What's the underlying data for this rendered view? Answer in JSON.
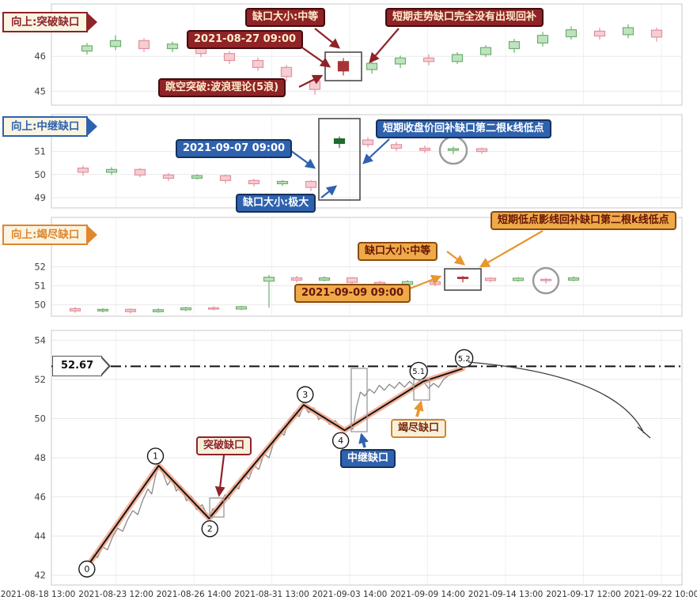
{
  "banners": [
    {
      "label": "向上:突破缺口",
      "color": "#8e2328"
    },
    {
      "label": "向上:中继缺口",
      "color": "#2f62ae"
    },
    {
      "label": "向上:竭尽缺口",
      "color": "#e0862d"
    }
  ],
  "annotations": {
    "breakout": {
      "gap_size": "缺口大小:中等",
      "no_fill": "短期走势缺口完全没有出现回补",
      "time": "2021-08-27 09:00",
      "wave_theory": "跳空突破:波浪理论(5浪)"
    },
    "continuation": {
      "time": "2021-09-07 09:00",
      "fill_rule": "短期收盘价回补缺口第二根k线低点",
      "gap_size": "缺口大小:极大"
    },
    "exhaustion": {
      "fill_rule": "短期低点影线回补缺口第二根k线低点",
      "gap_size": "缺口大小:中等",
      "time": "2021-09-09 09:00"
    },
    "wave": {
      "breakout_label": "突破缺口",
      "continuation_label": "中继缺口",
      "exhaustion_label": "竭尽缺口"
    }
  },
  "colors": {
    "up": "#6fae6f",
    "up_fill": "#bfe3bf",
    "down": "#e2909c",
    "down_fill": "#f6cdd3",
    "gap_up": "#1e6b2e",
    "gap_down": "#a93238",
    "accent_red": "#8e2328",
    "accent_blue": "#2f62ae",
    "accent_orange": "#e8962e",
    "wave_highlight": "#f2a284"
  },
  "chart_data": [
    {
      "id": "breakout-gap-panel",
      "type": "candlestick",
      "title": "向上:突破缺口",
      "ylim": [
        44.6,
        47.5
      ],
      "yticks": [
        45,
        46
      ],
      "gap_index": 9,
      "candles": [
        [
          46.15,
          46.38,
          46.05,
          46.3
        ],
        [
          46.28,
          46.6,
          46.18,
          46.45
        ],
        [
          46.45,
          46.52,
          46.12,
          46.22
        ],
        [
          46.22,
          46.42,
          46.12,
          46.35
        ],
        [
          46.35,
          46.4,
          45.98,
          46.08
        ],
        [
          46.08,
          46.15,
          45.78,
          45.88
        ],
        [
          45.88,
          45.96,
          45.58,
          45.68
        ],
        [
          45.68,
          45.75,
          45.28,
          45.42
        ],
        [
          45.3,
          45.35,
          44.9,
          45.05
        ],
        [
          45.85,
          45.95,
          45.45,
          45.58
        ],
        [
          45.62,
          45.88,
          45.5,
          45.8
        ],
        [
          45.78,
          46.02,
          45.66,
          45.95
        ],
        [
          45.95,
          46.06,
          45.74,
          45.85
        ],
        [
          45.85,
          46.12,
          45.78,
          46.05
        ],
        [
          46.05,
          46.32,
          45.98,
          46.25
        ],
        [
          46.22,
          46.5,
          46.1,
          46.42
        ],
        [
          46.38,
          46.7,
          46.28,
          46.6
        ],
        [
          46.56,
          46.86,
          46.48,
          46.76
        ],
        [
          46.72,
          46.82,
          46.48,
          46.58
        ],
        [
          46.62,
          46.92,
          46.52,
          46.82
        ],
        [
          46.75,
          46.82,
          46.42,
          46.55
        ]
      ]
    },
    {
      "id": "continuation-gap-panel",
      "type": "candlestick",
      "title": "向上:中继缺口",
      "ylim": [
        48.55,
        52.6
      ],
      "yticks": [
        49,
        50,
        51
      ],
      "gap_index": 9,
      "circled_index": 13,
      "candles": [
        [
          50.28,
          50.38,
          49.95,
          50.1
        ],
        [
          50.1,
          50.32,
          49.98,
          50.22
        ],
        [
          50.22,
          50.28,
          49.88,
          49.98
        ],
        [
          49.98,
          50.06,
          49.72,
          49.84
        ],
        [
          49.84,
          50.02,
          49.78,
          49.95
        ],
        [
          49.95,
          50.0,
          49.62,
          49.74
        ],
        [
          49.74,
          49.82,
          49.48,
          49.6
        ],
        [
          49.6,
          49.76,
          49.5,
          49.7
        ],
        [
          49.7,
          49.76,
          49.28,
          49.44
        ],
        [
          51.35,
          51.65,
          51.15,
          51.55
        ],
        [
          51.5,
          51.62,
          51.18,
          51.3
        ],
        [
          51.3,
          51.42,
          51.02,
          51.14
        ],
        [
          51.14,
          51.26,
          50.94,
          51.05
        ],
        [
          51.05,
          51.22,
          50.88,
          51.12
        ],
        [
          51.12,
          51.18,
          50.9,
          51.0
        ]
      ]
    },
    {
      "id": "exhaustion-gap-panel",
      "type": "candlestick",
      "title": "向上:竭尽缺口",
      "ylim": [
        49.4,
        54.6
      ],
      "yticks": [
        50,
        51,
        52
      ],
      "gap_index": 14,
      "circled_index": 17,
      "candles": [
        [
          49.8,
          49.88,
          49.58,
          49.68
        ],
        [
          49.68,
          49.82,
          49.6,
          49.76
        ],
        [
          49.76,
          49.82,
          49.54,
          49.64
        ],
        [
          49.64,
          49.82,
          49.58,
          49.74
        ],
        [
          49.74,
          49.9,
          49.66,
          49.84
        ],
        [
          49.84,
          49.92,
          49.7,
          49.78
        ],
        [
          49.78,
          49.95,
          49.72,
          49.9
        ],
        [
          51.25,
          51.58,
          49.85,
          51.45
        ],
        [
          51.42,
          51.52,
          51.18,
          51.3
        ],
        [
          51.3,
          51.5,
          51.24,
          51.42
        ],
        [
          51.42,
          51.46,
          51.08,
          51.18
        ],
        [
          51.18,
          51.26,
          50.98,
          51.08
        ],
        [
          51.08,
          51.3,
          51.02,
          51.22
        ],
        [
          51.22,
          51.26,
          50.98,
          51.08
        ],
        [
          51.45,
          51.52,
          51.18,
          51.44
        ],
        [
          51.4,
          51.46,
          51.18,
          51.28
        ],
        [
          51.28,
          51.46,
          51.22,
          51.4
        ],
        [
          51.34,
          51.42,
          51.12,
          51.3
        ],
        [
          51.3,
          51.5,
          51.24,
          51.42
        ]
      ]
    },
    {
      "id": "wave-analysis-panel",
      "type": "line",
      "ylim": [
        41.5,
        54.5
      ],
      "yticks": [
        42,
        44,
        46,
        48,
        50,
        52,
        54
      ],
      "xticks": [
        "2021-08-18 13:00",
        "2021-08-23 12:00",
        "2021-08-26 14:00",
        "2021-08-31 13:00",
        "2021-09-03 14:00",
        "2021-09-09 14:00",
        "2021-09-14 13:00",
        "2021-09-17 12:00",
        "2021-09-22 10:00"
      ],
      "hline": {
        "value": 52.67,
        "label": "52.67"
      },
      "wave_points": [
        {
          "label": "0",
          "x": 0.06,
          "value": 42.6
        },
        {
          "label": "1",
          "x": 0.17,
          "value": 47.6
        },
        {
          "label": "2",
          "x": 0.25,
          "value": 44.9
        },
        {
          "label": "3",
          "x": 0.4,
          "value": 50.7
        },
        {
          "label": "4",
          "x": 0.465,
          "value": 49.4
        },
        {
          "label": "5.1",
          "x": 0.59,
          "value": 51.9
        },
        {
          "label": "5.2",
          "x": 0.652,
          "value": 52.55
        }
      ],
      "price_line": [
        [
          0.06,
          42.6
        ],
        [
          0.067,
          43.05
        ],
        [
          0.073,
          42.9
        ],
        [
          0.081,
          43.45
        ],
        [
          0.089,
          43.3
        ],
        [
          0.097,
          43.95
        ],
        [
          0.105,
          44.4
        ],
        [
          0.113,
          44.25
        ],
        [
          0.121,
          44.85
        ],
        [
          0.129,
          45.3
        ],
        [
          0.137,
          45.1
        ],
        [
          0.145,
          45.85
        ],
        [
          0.153,
          46.4
        ],
        [
          0.159,
          46.15
        ],
        [
          0.165,
          47.05
        ],
        [
          0.17,
          47.6
        ],
        [
          0.177,
          47.2
        ],
        [
          0.184,
          46.6
        ],
        [
          0.191,
          46.95
        ],
        [
          0.198,
          46.3
        ],
        [
          0.206,
          46.55
        ],
        [
          0.214,
          45.8
        ],
        [
          0.222,
          46.05
        ],
        [
          0.23,
          45.35
        ],
        [
          0.239,
          45.6
        ],
        [
          0.25,
          44.9
        ],
        [
          0.256,
          45.4
        ],
        [
          0.262,
          45.2
        ],
        [
          0.268,
          45.65
        ],
        [
          0.275,
          46.1
        ],
        [
          0.282,
          45.9
        ],
        [
          0.29,
          46.6
        ],
        [
          0.297,
          46.4
        ],
        [
          0.305,
          47.15
        ],
        [
          0.313,
          46.9
        ],
        [
          0.321,
          47.6
        ],
        [
          0.329,
          47.4
        ],
        [
          0.337,
          48.2
        ],
        [
          0.345,
          48.0
        ],
        [
          0.353,
          48.8
        ],
        [
          0.361,
          49.4
        ],
        [
          0.369,
          49.15
        ],
        [
          0.377,
          49.9
        ],
        [
          0.385,
          50.3
        ],
        [
          0.393,
          50.1
        ],
        [
          0.4,
          50.7
        ],
        [
          0.408,
          50.3
        ],
        [
          0.416,
          50.55
        ],
        [
          0.424,
          49.95
        ],
        [
          0.432,
          50.15
        ],
        [
          0.441,
          49.7
        ],
        [
          0.45,
          49.9
        ],
        [
          0.458,
          49.55
        ],
        [
          0.465,
          49.4
        ],
        [
          0.472,
          49.6
        ],
        [
          0.478,
          49.45
        ],
        [
          0.484,
          50.6
        ],
        [
          0.49,
          51.35
        ],
        [
          0.497,
          51.15
        ],
        [
          0.504,
          51.5
        ],
        [
          0.512,
          51.3
        ],
        [
          0.52,
          51.7
        ],
        [
          0.528,
          51.45
        ],
        [
          0.536,
          51.75
        ],
        [
          0.544,
          51.55
        ],
        [
          0.552,
          51.85
        ],
        [
          0.56,
          51.6
        ],
        [
          0.568,
          51.9
        ],
        [
          0.576,
          51.65
        ],
        [
          0.584,
          51.95
        ],
        [
          0.59,
          51.9
        ],
        [
          0.598,
          51.55
        ],
        [
          0.606,
          51.8
        ],
        [
          0.614,
          51.6
        ],
        [
          0.622,
          52.0
        ],
        [
          0.63,
          52.2
        ],
        [
          0.638,
          52.35
        ],
        [
          0.645,
          52.45
        ],
        [
          0.652,
          52.55
        ]
      ]
    }
  ]
}
